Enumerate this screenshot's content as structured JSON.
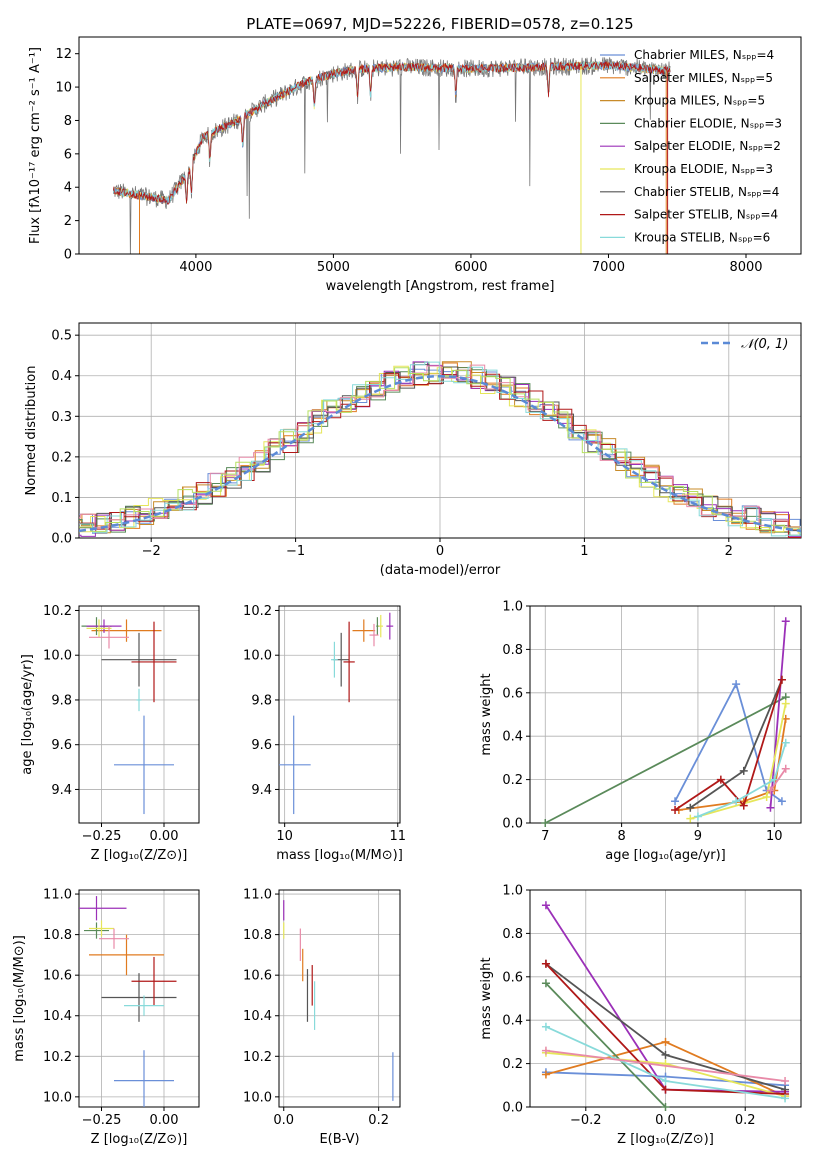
{
  "colors": {
    "chabrier_miles": "#6a8fd8",
    "salpeter_miles": "#e07b20",
    "kroupa_miles": "#c88b2a",
    "chabrier_elodie": "#5a8a5a",
    "salpeter_elodie": "#9b30b8",
    "kroupa_elodie": "#e6e65a",
    "chabrier_stelib": "#555555",
    "salpeter_stelib": "#b01818",
    "kroupa_stelib": "#88dada",
    "pink": "#e88aa8",
    "lime": "#b6e060",
    "gray_spec": "#777777"
  },
  "chart_data": [
    {
      "id": "spectrum",
      "type": "line",
      "title": "PLATE=0697, MJD=52226, FIBERID=0578, z=0.125",
      "xlabel": "wavelength [Angstrom, rest frame]",
      "ylabel": "Flux [fλ10⁻¹⁷ erg cm⁻² s⁻¹ A⁻¹]",
      "xlim": [
        3150,
        8400
      ],
      "ylim": [
        0,
        13
      ],
      "xticks": [
        "4000",
        "5000",
        "6000",
        "7000",
        "8000"
      ],
      "yticks": [
        "0",
        "2",
        "4",
        "6",
        "8",
        "10",
        "12"
      ],
      "legend_position": "top-right",
      "legend": [
        "Chabrier MILES, Nₛₚₚ=4",
        "Salpeter MILES, Nₛₚₚ=5",
        "Kroupa MILES, Nₛₚₚ=5",
        "Chabrier ELODIE, Nₛₚₚ=3",
        "Salpeter ELODIE, Nₛₚₚ=2",
        "Kroupa ELODIE, Nₛₚₚ=3",
        "Chabrier STELIB, Nₛₚₚ=4",
        "Salpeter STELIB, Nₛₚₚ=4",
        "Kroupa STELIB, Nₛₚₚ=6"
      ],
      "continuum": {
        "x": [
          3400,
          3600,
          3800,
          3950,
          4050,
          4300,
          4500,
          4800,
          5000,
          5200,
          5500,
          6000,
          6500,
          7000,
          7400
        ],
        "y": [
          3.8,
          3.5,
          3.2,
          5.0,
          7.0,
          8.0,
          9.0,
          10.3,
          10.8,
          11.1,
          11.2,
          11.1,
          11.2,
          11.3,
          11.0
        ]
      }
    },
    {
      "id": "residuals",
      "type": "line",
      "xlabel": "(data-model)/error",
      "ylabel": "Normed distribution",
      "xlim": [
        -2.5,
        2.5
      ],
      "ylim": [
        0,
        0.53
      ],
      "xticks": [
        "−2",
        "−1",
        "0",
        "1",
        "2"
      ],
      "yticks": [
        "0.0",
        "0.1",
        "0.2",
        "0.3",
        "0.4",
        "0.5"
      ],
      "legend": [
        "𝒩(0, 1)"
      ],
      "legend_position": "top-right",
      "gaussian": {
        "mean": 0,
        "sigma": 1
      }
    },
    {
      "id": "age_vs_Z",
      "type": "scatter",
      "xlabel": "Z [log₁₀(Z/Z⊙)]",
      "ylabel": "age  [log₁₀(age/yr)]",
      "xlim": [
        -0.34,
        0.14
      ],
      "ylim": [
        9.25,
        10.22
      ],
      "xticks": [
        "−0.25",
        "0.00"
      ],
      "xtick_values": [
        -0.25,
        0.0
      ],
      "yticks": [
        "9.4",
        "9.6",
        "9.8",
        "10.0",
        "10.2"
      ],
      "ytick_values": [
        9.4,
        9.6,
        9.8,
        10.0,
        10.2
      ],
      "points": [
        {
          "x": -0.08,
          "y": 9.51,
          "xerr": 0.12,
          "yerr": 0.22,
          "c": "chabrier_miles"
        },
        {
          "x": -0.15,
          "y": 10.11,
          "xerr": 0.14,
          "yerr": 0.05,
          "c": "salpeter_miles"
        },
        {
          "x": -0.27,
          "y": 10.13,
          "xerr": 0.06,
          "yerr": 0.04,
          "c": "chabrier_elodie"
        },
        {
          "x": -0.24,
          "y": 10.13,
          "xerr": 0.07,
          "yerr": 0.03,
          "c": "salpeter_elodie"
        },
        {
          "x": -0.26,
          "y": 10.12,
          "xerr": 0.05,
          "yerr": 0.04,
          "c": "kroupa_elodie"
        },
        {
          "x": -0.1,
          "y": 9.98,
          "xerr": 0.15,
          "yerr": 0.12,
          "c": "chabrier_stelib"
        },
        {
          "x": -0.04,
          "y": 9.97,
          "xerr": 0.09,
          "yerr": 0.18,
          "c": "salpeter_stelib"
        },
        {
          "x": -0.1,
          "y": 9.8,
          "xerr": 0.01,
          "yerr": 0.05,
          "c": "kroupa_stelib"
        },
        {
          "x": -0.22,
          "y": 10.08,
          "xerr": 0.08,
          "yerr": 0.05,
          "c": "pink"
        }
      ]
    },
    {
      "id": "age_vs_mass",
      "type": "scatter",
      "xlabel": "mass [log₁₀(M/M⊙)]",
      "xlim": [
        9.95,
        11.02
      ],
      "ylim": [
        9.25,
        10.22
      ],
      "xticks": [
        "10",
        "11"
      ],
      "xtick_values": [
        10,
        11
      ],
      "yticks": [
        "9.4",
        "9.6",
        "9.8",
        "10.0",
        "10.2"
      ],
      "ytick_values": [
        9.4,
        9.6,
        9.8,
        10.0,
        10.2
      ],
      "points": [
        {
          "x": 10.08,
          "y": 9.51,
          "xerr": 0.15,
          "yerr": 0.22,
          "c": "chabrier_miles"
        },
        {
          "x": 10.7,
          "y": 10.11,
          "xerr": 0.1,
          "yerr": 0.05,
          "c": "salpeter_miles"
        },
        {
          "x": 10.82,
          "y": 10.13,
          "xerr": 0.01,
          "yerr": 0.04,
          "c": "chabrier_elodie"
        },
        {
          "x": 10.93,
          "y": 10.13,
          "xerr": 0.03,
          "yerr": 0.06,
          "c": "salpeter_elodie"
        },
        {
          "x": 10.85,
          "y": 10.13,
          "xerr": 0.02,
          "yerr": 0.05,
          "c": "kroupa_elodie"
        },
        {
          "x": 10.5,
          "y": 9.98,
          "xerr": 0.07,
          "yerr": 0.12,
          "c": "chabrier_stelib"
        },
        {
          "x": 10.57,
          "y": 9.97,
          "xerr": 0.05,
          "yerr": 0.18,
          "c": "salpeter_stelib"
        },
        {
          "x": 10.44,
          "y": 9.98,
          "xerr": 0.03,
          "yerr": 0.08,
          "c": "kroupa_stelib"
        },
        {
          "x": 10.79,
          "y": 10.09,
          "xerr": 0.04,
          "yerr": 0.05,
          "c": "pink"
        }
      ]
    },
    {
      "id": "weight_vs_age",
      "type": "line",
      "xlabel": "age  [log₁₀(age/yr)]",
      "ylabel": "mass weight",
      "xlim": [
        6.8,
        10.35
      ],
      "ylim": [
        0,
        1
      ],
      "xticks": [
        "7",
        "8",
        "9",
        "10"
      ],
      "xtick_values": [
        7,
        8,
        9,
        10
      ],
      "yticks": [
        "0.0",
        "0.2",
        "0.4",
        "0.6",
        "0.8",
        "1.0"
      ],
      "ytick_values": [
        0,
        0.2,
        0.4,
        0.6,
        0.8,
        1.0
      ],
      "series": [
        {
          "c": "chabrier_miles",
          "x": [
            8.7,
            9.5,
            9.9,
            10.1
          ],
          "y": [
            0.1,
            0.64,
            0.15,
            0.1
          ]
        },
        {
          "c": "salpeter_miles",
          "x": [
            8.75,
            9.6,
            10.0,
            10.15
          ],
          "y": [
            0.06,
            0.1,
            0.15,
            0.48
          ]
        },
        {
          "c": "chabrier_elodie",
          "x": [
            7.0,
            10.15
          ],
          "y": [
            0.0,
            0.58
          ]
        },
        {
          "c": "salpeter_elodie",
          "x": [
            9.95,
            10.15
          ],
          "y": [
            0.07,
            0.93
          ]
        },
        {
          "c": "kroupa_elodie",
          "x": [
            8.9,
            9.9,
            10.15
          ],
          "y": [
            0.02,
            0.12,
            0.55
          ]
        },
        {
          "c": "chabrier_stelib",
          "x": [
            8.9,
            9.6,
            10.1
          ],
          "y": [
            0.07,
            0.24,
            0.66
          ]
        },
        {
          "c": "salpeter_stelib",
          "x": [
            8.7,
            9.3,
            9.6,
            10.1
          ],
          "y": [
            0.06,
            0.2,
            0.08,
            0.66
          ]
        },
        {
          "c": "kroupa_stelib",
          "x": [
            9.0,
            9.5,
            10.0,
            10.15
          ],
          "y": [
            0.03,
            0.1,
            0.2,
            0.37
          ]
        },
        {
          "c": "pink",
          "x": [
            9.95,
            10.15
          ],
          "y": [
            0.15,
            0.25
          ]
        }
      ]
    },
    {
      "id": "mass_vs_Z",
      "type": "scatter",
      "xlabel": "Z [log₁₀(Z/Z⊙)]",
      "ylabel": "mass [log₁₀(M/M⊙)]",
      "xlim": [
        -0.34,
        0.14
      ],
      "ylim": [
        9.95,
        11.02
      ],
      "xticks": [
        "−0.25",
        "0.00"
      ],
      "xtick_values": [
        -0.25,
        0.0
      ],
      "yticks": [
        "10.0",
        "10.2",
        "10.4",
        "10.6",
        "10.8",
        "11.0"
      ],
      "ytick_values": [
        10.0,
        10.2,
        10.4,
        10.6,
        10.8,
        11.0
      ],
      "points": [
        {
          "x": -0.08,
          "y": 10.08,
          "xerr": 0.12,
          "yerr": 0.15,
          "c": "chabrier_miles"
        },
        {
          "x": -0.15,
          "y": 10.7,
          "xerr": 0.15,
          "yerr": 0.1,
          "c": "salpeter_miles"
        },
        {
          "x": -0.27,
          "y": 10.82,
          "xerr": 0.05,
          "yerr": 0.04,
          "c": "chabrier_elodie"
        },
        {
          "x": -0.27,
          "y": 10.93,
          "xerr": 0.12,
          "yerr": 0.06,
          "c": "salpeter_elodie"
        },
        {
          "x": -0.25,
          "y": 10.83,
          "xerr": 0.05,
          "yerr": 0.04,
          "c": "kroupa_elodie"
        },
        {
          "x": -0.1,
          "y": 10.49,
          "xerr": 0.15,
          "yerr": 0.12,
          "c": "chabrier_stelib"
        },
        {
          "x": -0.04,
          "y": 10.57,
          "xerr": 0.09,
          "yerr": 0.12,
          "c": "salpeter_stelib"
        },
        {
          "x": -0.08,
          "y": 10.45,
          "xerr": 0.08,
          "yerr": 0.05,
          "c": "kroupa_stelib"
        },
        {
          "x": -0.2,
          "y": 10.78,
          "xerr": 0.06,
          "yerr": 0.05,
          "c": "pink"
        }
      ]
    },
    {
      "id": "mass_vs_ebv",
      "type": "scatter",
      "xlabel": "E(B-V)",
      "xlim": [
        -0.01,
        0.245
      ],
      "ylim": [
        9.95,
        11.02
      ],
      "xticks": [
        "0.0",
        "0.2"
      ],
      "xtick_values": [
        0.0,
        0.2
      ],
      "yticks": [
        "10.0",
        "10.2",
        "10.4",
        "10.6",
        "10.8",
        "11.0"
      ],
      "ytick_values": [
        10.0,
        10.2,
        10.4,
        10.6,
        10.8,
        11.0
      ],
      "points": [
        {
          "x": 0.23,
          "y": 10.1,
          "xerr": 0.0,
          "yerr": 0.12,
          "c": "chabrier_miles"
        },
        {
          "x": 0.04,
          "y": 10.65,
          "xerr": 0.0,
          "yerr": 0.08,
          "c": "salpeter_miles"
        },
        {
          "x": 0.0,
          "y": 10.92,
          "xerr": 0.0,
          "yerr": 0.05,
          "c": "salpeter_elodie"
        },
        {
          "x": 0.0,
          "y": 10.82,
          "xerr": 0.0,
          "yerr": 0.04,
          "c": "kroupa_elodie"
        },
        {
          "x": 0.05,
          "y": 10.5,
          "xerr": 0.0,
          "yerr": 0.13,
          "c": "chabrier_stelib"
        },
        {
          "x": 0.06,
          "y": 10.55,
          "xerr": 0.0,
          "yerr": 0.1,
          "c": "salpeter_stelib"
        },
        {
          "x": 0.065,
          "y": 10.45,
          "xerr": 0.0,
          "yerr": 0.12,
          "c": "kroupa_stelib"
        },
        {
          "x": 0.035,
          "y": 10.75,
          "xerr": 0.0,
          "yerr": 0.08,
          "c": "pink"
        }
      ]
    },
    {
      "id": "weight_vs_Z",
      "type": "line",
      "xlabel": "Z [log₁₀(Z/Z⊙)]",
      "ylabel": "mass weight",
      "xlim": [
        -0.34,
        0.34
      ],
      "ylim": [
        0,
        1
      ],
      "xticks": [
        "−0.2",
        "0.0",
        "0.2"
      ],
      "xtick_values": [
        -0.2,
        0.0,
        0.2
      ],
      "yticks": [
        "0.0",
        "0.2",
        "0.4",
        "0.6",
        "0.8",
        "1.0"
      ],
      "ytick_values": [
        0,
        0.2,
        0.4,
        0.6,
        0.8,
        1.0
      ],
      "series": [
        {
          "c": "chabrier_miles",
          "x": [
            -0.3,
            0.0,
            0.3
          ],
          "y": [
            0.16,
            0.14,
            0.1
          ]
        },
        {
          "c": "salpeter_miles",
          "x": [
            -0.3,
            0.0,
            0.3
          ],
          "y": [
            0.15,
            0.3,
            0.05
          ]
        },
        {
          "c": "chabrier_elodie",
          "x": [
            -0.3,
            0.0
          ],
          "y": [
            0.57,
            0.0
          ]
        },
        {
          "c": "salpeter_elodie",
          "x": [
            -0.3,
            0.0,
            0.3
          ],
          "y": [
            0.93,
            0.08,
            0.07
          ]
        },
        {
          "c": "kroupa_elodie",
          "x": [
            -0.3,
            0.0,
            0.3
          ],
          "y": [
            0.25,
            0.2,
            0.05
          ]
        },
        {
          "c": "chabrier_stelib",
          "x": [
            -0.3,
            0.0,
            0.3
          ],
          "y": [
            0.66,
            0.24,
            0.08
          ]
        },
        {
          "c": "salpeter_stelib",
          "x": [
            -0.3,
            0.0,
            0.3
          ],
          "y": [
            0.66,
            0.08,
            0.06
          ]
        },
        {
          "c": "kroupa_stelib",
          "x": [
            -0.3,
            0.0,
            0.3
          ],
          "y": [
            0.37,
            0.12,
            0.04
          ]
        },
        {
          "c": "pink",
          "x": [
            -0.3,
            0.3
          ],
          "y": [
            0.26,
            0.12
          ]
        }
      ]
    }
  ]
}
